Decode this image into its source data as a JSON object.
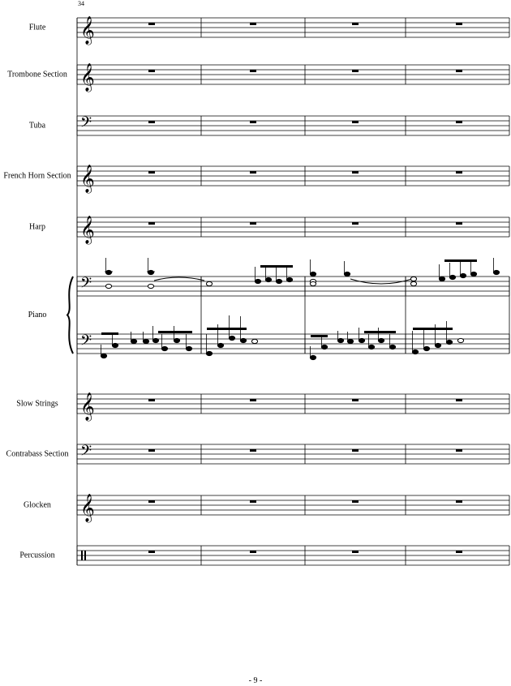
{
  "measure_number": "34",
  "staves": [
    {
      "label": "Flute"
    },
    {
      "label": "Trombone Section"
    },
    {
      "label": "Tuba"
    },
    {
      "label": "French Horn Section"
    },
    {
      "label": "Harp"
    },
    {
      "label": "Piano"
    },
    {
      "label": "Slow Strings"
    },
    {
      "label": "Contrabass Section"
    },
    {
      "label": "Glocken"
    },
    {
      "label": "Percussion"
    }
  ],
  "page_number": "- 9 -"
}
